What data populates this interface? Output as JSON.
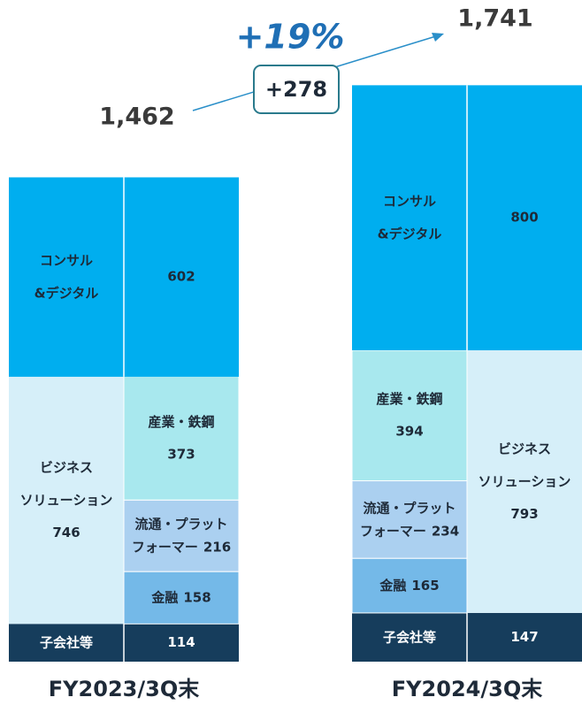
{
  "chart_data": {
    "type": "stacked_bar",
    "growth": "+19%",
    "difference": "+278",
    "bars": [
      {
        "category": "FY2023/3Q末",
        "total": {
          "value": 1462,
          "label": "1,462"
        },
        "parts_side": "right",
        "segments": [
          {
            "name": [
              "子会社等"
            ],
            "value": 114,
            "color": "#163d5c"
          },
          {
            "name": [
              "ビジネス",
              "ソリューション"
            ],
            "value": 746,
            "color": "#d6eff9",
            "parts": [
              {
                "name": [
                  "金融"
                ],
                "value": 158,
                "color": "#74b9e8"
              },
              {
                "name": [
                  "流通・プラット",
                  "フォーマー"
                ],
                "value": 216,
                "color": "#abd0f0"
              },
              {
                "name": [
                  "産業・鉄鋼"
                ],
                "value": 373,
                "color": "#a8e8ee"
              }
            ]
          },
          {
            "name": [
              "コンサル",
              "&デジタル"
            ],
            "value": 602,
            "color": "#00aeef"
          }
        ]
      },
      {
        "category": "FY2024/3Q末",
        "total": {
          "value": 1741,
          "label": "1,741"
        },
        "parts_side": "left",
        "segments": [
          {
            "name": [
              "子会社等"
            ],
            "value": 147,
            "color": "#163d5c"
          },
          {
            "name": [
              "ビジネス",
              "ソリューション"
            ],
            "value": 793,
            "color": "#d6eff9",
            "parts": [
              {
                "name": [
                  "金融"
                ],
                "value": 165,
                "color": "#74b9e8"
              },
              {
                "name": [
                  "流通・プラット",
                  "フォーマー"
                ],
                "value": 234,
                "color": "#abd0f0"
              },
              {
                "name": [
                  "産業・鉄鋼"
                ],
                "value": 394,
                "color": "#a8e8ee"
              }
            ]
          },
          {
            "name": [
              "コンサル",
              "&デジタル"
            ],
            "value": 800,
            "color": "#00aeef"
          }
        ]
      }
    ]
  }
}
